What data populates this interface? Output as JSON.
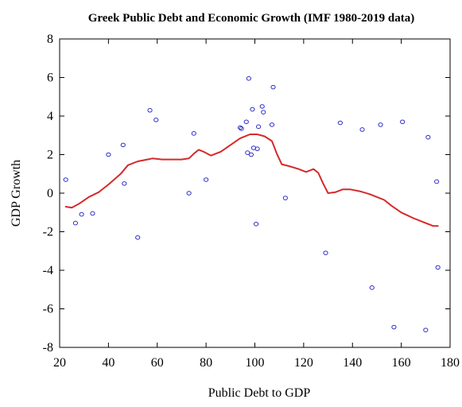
{
  "chart_data": {
    "type": "scatter",
    "title": "Greek Public Debt and Economic Growth (IMF 1980-2019 data)",
    "xlabel": "Public Debt to GDP",
    "ylabel": "GDP Growth",
    "xlim": [
      20,
      180
    ],
    "ylim": [
      -8,
      8
    ],
    "x_ticks": [
      20,
      40,
      60,
      80,
      100,
      120,
      140,
      160,
      180
    ],
    "y_ticks": [
      -8,
      -6,
      -4,
      -2,
      0,
      2,
      4,
      6,
      8
    ],
    "grid": false,
    "colors": {
      "points": "#2b2bc8",
      "fit": "#d42a2a",
      "frame": "#000000"
    },
    "series": [
      {
        "type": "scatter",
        "points": [
          [
            22.5,
            0.7
          ],
          [
            26.5,
            -1.55
          ],
          [
            29,
            -1.1
          ],
          [
            33.5,
            -1.05
          ],
          [
            40,
            2.0
          ],
          [
            46,
            2.5
          ],
          [
            46.5,
            0.5
          ],
          [
            52,
            -2.3
          ],
          [
            57,
            4.3
          ],
          [
            59.5,
            3.8
          ],
          [
            73,
            0.0
          ],
          [
            75,
            3.1
          ],
          [
            80,
            0.7
          ],
          [
            94,
            3.4
          ],
          [
            94.5,
            3.35
          ],
          [
            96.5,
            3.7
          ],
          [
            97,
            2.1
          ],
          [
            97.5,
            5.95
          ],
          [
            98.5,
            2.0
          ],
          [
            99,
            4.35
          ],
          [
            99.5,
            2.35
          ],
          [
            100.5,
            -1.6
          ],
          [
            101,
            2.3
          ],
          [
            101.5,
            3.45
          ],
          [
            103,
            4.5
          ],
          [
            103.5,
            4.2
          ],
          [
            107,
            3.55
          ],
          [
            107.5,
            5.5
          ],
          [
            112.5,
            -0.25
          ],
          [
            129,
            -3.1
          ],
          [
            135,
            3.65
          ],
          [
            144,
            3.3
          ],
          [
            148,
            -4.9
          ],
          [
            151.5,
            3.55
          ],
          [
            157,
            -6.95
          ],
          [
            160.5,
            3.7
          ],
          [
            170,
            -7.1
          ],
          [
            171,
            2.9
          ],
          [
            174.5,
            0.6
          ],
          [
            175,
            -3.85
          ]
        ]
      },
      {
        "type": "line",
        "points": [
          [
            22.5,
            -0.7
          ],
          [
            25,
            -0.75
          ],
          [
            28,
            -0.55
          ],
          [
            32,
            -0.2
          ],
          [
            36,
            0.05
          ],
          [
            40,
            0.45
          ],
          [
            45,
            1.0
          ],
          [
            48,
            1.45
          ],
          [
            52,
            1.65
          ],
          [
            56,
            1.75
          ],
          [
            58,
            1.8
          ],
          [
            62,
            1.75
          ],
          [
            66,
            1.75
          ],
          [
            70,
            1.75
          ],
          [
            73,
            1.8
          ],
          [
            75,
            2.05
          ],
          [
            77,
            2.25
          ],
          [
            79,
            2.15
          ],
          [
            82,
            1.95
          ],
          [
            86,
            2.15
          ],
          [
            90,
            2.5
          ],
          [
            94,
            2.85
          ],
          [
            98,
            3.05
          ],
          [
            101,
            3.05
          ],
          [
            104,
            2.95
          ],
          [
            107,
            2.7
          ],
          [
            109,
            2.05
          ],
          [
            111,
            1.5
          ],
          [
            114,
            1.4
          ],
          [
            118,
            1.25
          ],
          [
            121,
            1.1
          ],
          [
            124,
            1.25
          ],
          [
            126,
            1.05
          ],
          [
            128,
            0.5
          ],
          [
            130,
            0.0
          ],
          [
            133,
            0.05
          ],
          [
            136,
            0.2
          ],
          [
            139,
            0.2
          ],
          [
            143,
            0.1
          ],
          [
            147,
            -0.05
          ],
          [
            150,
            -0.2
          ],
          [
            153,
            -0.35
          ],
          [
            156,
            -0.65
          ],
          [
            160,
            -1.0
          ],
          [
            165,
            -1.3
          ],
          [
            170,
            -1.55
          ],
          [
            173,
            -1.7
          ],
          [
            175,
            -1.7
          ]
        ]
      }
    ]
  }
}
